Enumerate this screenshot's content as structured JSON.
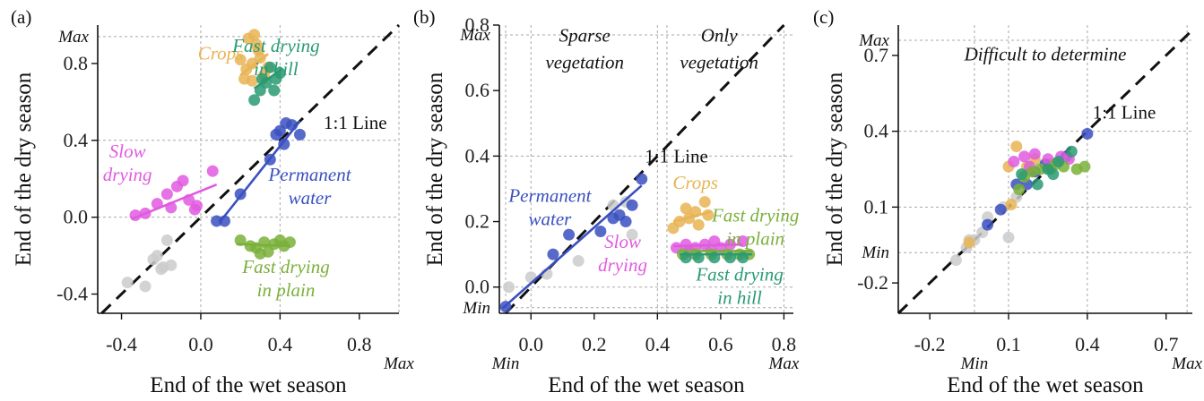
{
  "colors": {
    "gray": "#cbcbcb",
    "crops": "#e8b454",
    "hill": "#2a9a72",
    "water": "#3a50c0",
    "slow": "#e05ae0",
    "plain": "#7ab03a"
  },
  "chart_data": [
    {
      "type": "scatter",
      "panel_label": "(a)",
      "xlabel": "End of the wet season",
      "ylabel": "End of the dry season",
      "xlim": [
        -0.52,
        1.0
      ],
      "ylim": [
        -0.5,
        1.0
      ],
      "xticks": [
        -0.4,
        0.0,
        0.4,
        0.8
      ],
      "xtick_labels": [
        "-0.4",
        "0.0",
        "0.4",
        "0.8"
      ],
      "yticks": [
        -0.4,
        0.0,
        0.4,
        0.8
      ],
      "ytick_labels": [
        "-0.4",
        "0.0",
        "0.4",
        "0.8"
      ],
      "grid_x": [
        0.0,
        0.4
      ],
      "grid_y": [
        0.0,
        0.4
      ],
      "max_x": 1.0,
      "max_y": 0.94,
      "max_x_label": "Max",
      "max_y_label": "Max",
      "diagonal": {
        "label": "1:1 Line",
        "label_at": [
          0.62,
          0.46
        ]
      },
      "region_labels": [],
      "series": [
        {
          "color_key": "gray",
          "points": [
            [
              -0.37,
              -0.34
            ],
            [
              -0.28,
              -0.36
            ],
            [
              -0.22,
              -0.2
            ],
            [
              -0.19,
              -0.26
            ],
            [
              -0.17,
              -0.12
            ],
            [
              -0.2,
              -0.27
            ],
            [
              -0.15,
              -0.25
            ],
            [
              -0.24,
              -0.22
            ]
          ]
        },
        {
          "color_key": "crops",
          "points": [
            [
              0.2,
              0.82
            ],
            [
              0.23,
              0.77
            ],
            [
              0.26,
              0.8
            ],
            [
              0.27,
              0.95
            ],
            [
              0.28,
              0.9
            ],
            [
              0.3,
              0.83
            ],
            [
              0.32,
              0.74
            ],
            [
              0.22,
              0.72
            ],
            [
              0.34,
              0.78
            ],
            [
              0.26,
              0.71
            ],
            [
              0.29,
              0.87
            ],
            [
              0.24,
              0.93
            ]
          ],
          "fit": [
            [
              0.2,
              0.74
            ],
            [
              0.34,
              0.85
            ]
          ]
        },
        {
          "color_key": "hill",
          "points": [
            [
              0.27,
              0.61
            ],
            [
              0.3,
              0.66
            ],
            [
              0.33,
              0.7
            ],
            [
              0.35,
              0.78
            ],
            [
              0.38,
              0.72
            ],
            [
              0.4,
              0.75
            ],
            [
              0.31,
              0.72
            ],
            [
              0.37,
              0.66
            ]
          ],
          "fit": [
            [
              0.27,
              0.67
            ],
            [
              0.41,
              0.77
            ]
          ]
        },
        {
          "color_key": "water",
          "points": [
            [
              0.08,
              -0.02
            ],
            [
              0.12,
              -0.02
            ],
            [
              0.2,
              0.12
            ],
            [
              0.38,
              0.43
            ],
            [
              0.4,
              0.45
            ],
            [
              0.43,
              0.49
            ],
            [
              0.46,
              0.48
            ],
            [
              0.5,
              0.43
            ],
            [
              0.42,
              0.38
            ],
            [
              0.35,
              0.3
            ]
          ],
          "fit": [
            [
              0.1,
              -0.02
            ],
            [
              0.5,
              0.5
            ]
          ]
        },
        {
          "color_key": "slow",
          "points": [
            [
              -0.33,
              0.01
            ],
            [
              -0.28,
              0.02
            ],
            [
              -0.22,
              0.07
            ],
            [
              -0.17,
              0.12
            ],
            [
              -0.12,
              0.16
            ],
            [
              -0.09,
              0.19
            ],
            [
              -0.06,
              0.09
            ],
            [
              -0.03,
              0.04
            ],
            [
              -0.02,
              0.06
            ],
            [
              0.06,
              0.24
            ],
            [
              -0.15,
              0.05
            ]
          ],
          "fit": [
            [
              -0.35,
              -0.01
            ],
            [
              0.08,
              0.17
            ]
          ]
        },
        {
          "color_key": "plain",
          "points": [
            [
              0.2,
              -0.12
            ],
            [
              0.25,
              -0.15
            ],
            [
              0.28,
              -0.16
            ],
            [
              0.32,
              -0.13
            ],
            [
              0.34,
              -0.18
            ],
            [
              0.37,
              -0.14
            ],
            [
              0.4,
              -0.12
            ],
            [
              0.42,
              -0.15
            ],
            [
              0.45,
              -0.13
            ],
            [
              0.3,
              -0.19
            ]
          ],
          "fit": [
            [
              0.18,
              -0.14
            ],
            [
              0.45,
              -0.15
            ]
          ]
        }
      ],
      "annotations": [
        {
          "text": "Crops",
          "color_key": "crops",
          "at": [
            0.1,
            0.82
          ],
          "lines": [
            "Crops"
          ]
        },
        {
          "text": "Fast drying in hill",
          "color_key": "hill",
          "at": [
            0.38,
            0.86
          ],
          "lines": [
            "Fast drying",
            "in hill"
          ]
        },
        {
          "text": "Slow drying",
          "color_key": "slow",
          "at": [
            -0.37,
            0.31
          ],
          "lines": [
            "Slow",
            "drying"
          ]
        },
        {
          "text": "Permanent water",
          "color_key": "water",
          "at": [
            0.55,
            0.19
          ],
          "lines": [
            "Permanent",
            "water"
          ]
        },
        {
          "text": "Fast drying in plain",
          "color_key": "plain",
          "at": [
            0.43,
            -0.29
          ],
          "lines": [
            "Fast drying",
            "in plain"
          ]
        }
      ]
    },
    {
      "type": "scatter",
      "panel_label": "(b)",
      "xlabel": "End of the wet season",
      "ylabel": "End of the dry season",
      "xlim": [
        -0.1,
        0.83
      ],
      "ylim": [
        -0.08,
        0.8
      ],
      "xticks": [
        0.0,
        0.2,
        0.4,
        0.6,
        0.8
      ],
      "xtick_labels": [
        "0.0",
        "0.2",
        "0.4",
        "0.6",
        "0.8"
      ],
      "yticks": [
        0.0,
        0.2,
        0.4,
        0.6,
        0.8
      ],
      "ytick_labels": [
        "0.0",
        "0.2",
        "0.4",
        "0.6",
        "0.8"
      ],
      "grid_x": [
        0.0,
        0.4
      ],
      "grid_y": [
        0.0,
        0.4
      ],
      "max_x": 0.8,
      "max_y": 0.77,
      "min_x": -0.08,
      "min_y": -0.063,
      "max_x_label": "Max",
      "max_y_label": "Max",
      "min_x_label": "Min",
      "min_y_label": "Min",
      "divider_x": 0.43,
      "diagonal": {
        "label": "1:1 Line",
        "label_at": [
          0.36,
          0.38
        ]
      },
      "region_labels": [
        {
          "lines": [
            "Sparse",
            "vegetation"
          ],
          "at": [
            0.17,
            0.75
          ]
        },
        {
          "lines": [
            "Only",
            "vegetation"
          ],
          "at": [
            0.595,
            0.75
          ]
        }
      ],
      "series": [
        {
          "color_key": "gray",
          "points": [
            [
              -0.07,
              0.0
            ],
            [
              0.0,
              0.03
            ],
            [
              0.15,
              0.08
            ],
            [
              0.26,
              0.25
            ],
            [
              0.3,
              0.26
            ],
            [
              0.32,
              0.16
            ],
            [
              0.05,
              0.04
            ]
          ]
        },
        {
          "color_key": "water",
          "points": [
            [
              -0.08,
              -0.06
            ],
            [
              0.07,
              0.1
            ],
            [
              0.12,
              0.16
            ],
            [
              0.22,
              0.17
            ],
            [
              0.26,
              0.21
            ],
            [
              0.28,
              0.22
            ],
            [
              0.32,
              0.25
            ],
            [
              0.35,
              0.33
            ],
            [
              0.3,
              0.2
            ]
          ],
          "fit": [
            [
              -0.09,
              -0.065
            ],
            [
              0.35,
              0.31
            ]
          ]
        },
        {
          "color_key": "crops",
          "points": [
            [
              0.45,
              0.18
            ],
            [
              0.47,
              0.2
            ],
            [
              0.5,
              0.21
            ],
            [
              0.52,
              0.23
            ],
            [
              0.55,
              0.26
            ],
            [
              0.56,
              0.22
            ],
            [
              0.49,
              0.24
            ],
            [
              0.53,
              0.19
            ]
          ],
          "fit": [
            [
              0.45,
              0.2
            ],
            [
              0.57,
              0.23
            ]
          ]
        },
        {
          "color_key": "slow",
          "points": [
            [
              0.46,
              0.12
            ],
            [
              0.49,
              0.13
            ],
            [
              0.52,
              0.12
            ],
            [
              0.55,
              0.13
            ],
            [
              0.58,
              0.14
            ],
            [
              0.6,
              0.12
            ],
            [
              0.63,
              0.13
            ],
            [
              0.67,
              0.14
            ],
            [
              0.5,
              0.11
            ],
            [
              0.57,
              0.11
            ]
          ],
          "fit": [
            [
              0.45,
              0.125
            ],
            [
              0.67,
              0.13
            ]
          ]
        },
        {
          "color_key": "plain",
          "points": [
            [
              0.48,
              0.1
            ],
            [
              0.52,
              0.1
            ],
            [
              0.57,
              0.1
            ],
            [
              0.62,
              0.1
            ],
            [
              0.66,
              0.1
            ],
            [
              0.69,
              0.1
            ]
          ],
          "fit": [
            [
              0.47,
              0.11
            ],
            [
              0.7,
              0.11
            ]
          ]
        },
        {
          "color_key": "hill",
          "points": [
            [
              0.49,
              0.09
            ],
            [
              0.53,
              0.09
            ],
            [
              0.58,
              0.09
            ],
            [
              0.63,
              0.09
            ],
            [
              0.67,
              0.09
            ]
          ],
          "fit": [
            [
              0.47,
              0.1
            ],
            [
              0.7,
              0.1
            ]
          ]
        }
      ],
      "annotations": [
        {
          "text": "Permanent water",
          "color_key": "water",
          "at": [
            0.06,
            0.26
          ],
          "lines": [
            "Permanent",
            "water"
          ]
        },
        {
          "text": "Slow drying",
          "color_key": "slow",
          "at": [
            0.29,
            0.12
          ],
          "lines": [
            "Slow",
            "drying"
          ]
        },
        {
          "text": "Crops",
          "color_key": "crops",
          "at": [
            0.52,
            0.3
          ],
          "lines": [
            "Crops"
          ]
        },
        {
          "text": "Fast drying in plain",
          "color_key": "plain",
          "at": [
            0.71,
            0.2
          ],
          "lines": [
            "Fast drying",
            "in plain"
          ]
        },
        {
          "text": "Fast drying in hill",
          "color_key": "hill",
          "at": [
            0.66,
            0.02
          ],
          "lines": [
            "Fast drying",
            "in hill"
          ]
        }
      ]
    },
    {
      "type": "scatter",
      "panel_label": "(c)",
      "xlabel": "End of the wet season",
      "ylabel": "End of the dry season",
      "xlim": [
        -0.32,
        0.8
      ],
      "ylim": [
        -0.32,
        0.82
      ],
      "xticks": [
        -0.2,
        0.1,
        0.4,
        0.7
      ],
      "xtick_labels": [
        "-0.2",
        "0.1",
        "0.4",
        "0.7"
      ],
      "yticks": [
        -0.2,
        0.1,
        0.4,
        0.7
      ],
      "ytick_labels": [
        "-0.2",
        "0.1",
        "0.4",
        "0.7"
      ],
      "grid_x": [
        0.1,
        0.4
      ],
      "grid_y": [
        0.1,
        0.4
      ],
      "max_x": 0.78,
      "max_y": 0.76,
      "min_x": -0.03,
      "min_y": -0.08,
      "max_x_label": "Max",
      "max_y_label": "Max",
      "min_x_label": "Min",
      "min_y_label": "Min",
      "diagonal": {
        "label": "1:1 Line",
        "label_at": [
          0.42,
          0.45
        ]
      },
      "region_labels": [
        {
          "lines": [
            "Difficult to determine"
          ],
          "at": [
            0.24,
            0.68
          ]
        }
      ],
      "series": [
        {
          "color_key": "gray",
          "points": [
            [
              -0.1,
              -0.11
            ],
            [
              -0.06,
              -0.06
            ],
            [
              -0.03,
              -0.03
            ],
            [
              0.02,
              0.06
            ],
            [
              0.0,
              0.0
            ],
            [
              -0.05,
              -0.03
            ],
            [
              0.1,
              -0.02
            ],
            [
              0.13,
              0.14
            ],
            [
              0.08,
              0.1
            ]
          ]
        },
        {
          "color_key": "crops",
          "points": [
            [
              -0.05,
              -0.04
            ],
            [
              0.1,
              0.26
            ],
            [
              0.13,
              0.34
            ],
            [
              0.17,
              0.26
            ],
            [
              0.2,
              0.29
            ],
            [
              0.26,
              0.27
            ],
            [
              0.11,
              0.11
            ]
          ]
        },
        {
          "color_key": "water",
          "points": [
            [
              0.02,
              0.03
            ],
            [
              0.07,
              0.09
            ],
            [
              0.13,
              0.19
            ],
            [
              0.17,
              0.19
            ],
            [
              0.24,
              0.27
            ],
            [
              0.32,
              0.3
            ],
            [
              0.4,
              0.39
            ],
            [
              0.2,
              0.24
            ]
          ]
        },
        {
          "color_key": "slow",
          "points": [
            [
              0.12,
              0.28
            ],
            [
              0.16,
              0.3
            ],
            [
              0.2,
              0.31
            ],
            [
              0.25,
              0.29
            ],
            [
              0.3,
              0.3
            ],
            [
              0.33,
              0.29
            ],
            [
              0.18,
              0.26
            ]
          ]
        },
        {
          "color_key": "plain",
          "points": [
            [
              0.14,
              0.17
            ],
            [
              0.19,
              0.24
            ],
            [
              0.22,
              0.25
            ],
            [
              0.26,
              0.25
            ],
            [
              0.31,
              0.26
            ],
            [
              0.36,
              0.25
            ],
            [
              0.39,
              0.26
            ],
            [
              0.28,
              0.27
            ],
            [
              0.16,
              0.22
            ]
          ]
        },
        {
          "color_key": "hill",
          "points": [
            [
              0.15,
              0.23
            ],
            [
              0.21,
              0.19
            ],
            [
              0.25,
              0.25
            ],
            [
              0.29,
              0.28
            ],
            [
              0.34,
              0.32
            ],
            [
              0.27,
              0.23
            ]
          ]
        }
      ],
      "annotations": []
    }
  ]
}
